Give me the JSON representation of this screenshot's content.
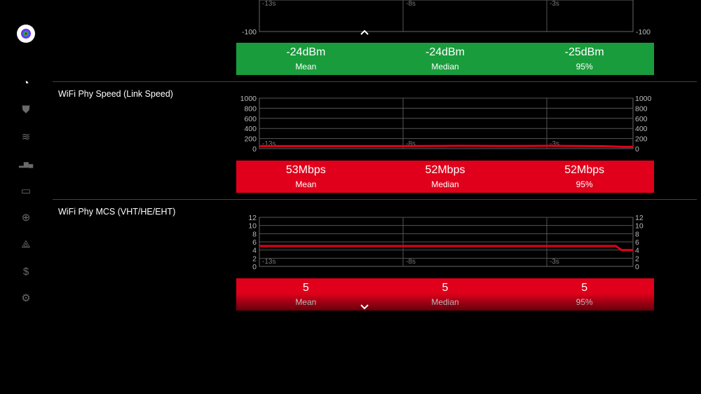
{
  "sidebar": {
    "items": [
      {
        "icon": "speedometer-icon",
        "glyph": "◔",
        "active": true
      },
      {
        "icon": "shield-icon",
        "glyph": "⛊"
      },
      {
        "icon": "wifi-icon",
        "glyph": "≋"
      },
      {
        "icon": "bar-chart-icon",
        "glyph": "▂▆▄"
      },
      {
        "icon": "devices-icon",
        "glyph": "▭"
      },
      {
        "icon": "globe-icon",
        "glyph": "⊕"
      },
      {
        "icon": "webhook-icon",
        "glyph": "⟁"
      },
      {
        "icon": "dollar-icon",
        "glyph": "$"
      },
      {
        "icon": "gear-icon",
        "glyph": "⚙"
      }
    ]
  },
  "panels": [
    {
      "title": "",
      "color": "#199c3c",
      "stats": [
        {
          "value": "-24dBm",
          "label": "Mean"
        },
        {
          "value": "-24dBm",
          "label": "Median"
        },
        {
          "value": "-25dBm",
          "label": "95%"
        }
      ]
    },
    {
      "title": "WiFi Phy Speed (Link Speed)",
      "color": "#e0001b",
      "stats": [
        {
          "value": "53Mbps",
          "label": "Mean"
        },
        {
          "value": "52Mbps",
          "label": "Median"
        },
        {
          "value": "52Mbps",
          "label": "95%"
        }
      ]
    },
    {
      "title": "WiFi Phy MCS (VHT/HE/EHT)",
      "color": "#e0001b",
      "stats": [
        {
          "value": "5",
          "label": "Mean"
        },
        {
          "value": "5",
          "label": "Median"
        },
        {
          "value": "5",
          "label": "95%"
        }
      ]
    }
  ],
  "chart_data": [
    {
      "type": "line",
      "partial": true,
      "yticks": [
        -100
      ],
      "xticks": [
        "-13s",
        "-8s",
        "-3s"
      ]
    },
    {
      "type": "line",
      "ylim": [
        0,
        1000
      ],
      "yticks": [
        0,
        200,
        400,
        600,
        800,
        1000
      ],
      "xticks": [
        "-13s",
        "-8s",
        "-3s"
      ],
      "grid": true,
      "color": "#e0001b",
      "x": [
        -13,
        -8,
        -6,
        -4.5,
        -3,
        -2,
        -1,
        -0.3,
        0
      ],
      "y": [
        50,
        50,
        55,
        52,
        55,
        52,
        48,
        35,
        35
      ]
    },
    {
      "type": "line",
      "ylim": [
        0,
        12
      ],
      "yticks": [
        0,
        2,
        4,
        6,
        8,
        10,
        12
      ],
      "xticks": [
        "-13s",
        "-8s",
        "-3s"
      ],
      "grid": true,
      "color": "#e0001b",
      "x": [
        -13,
        -0.6,
        -0.4,
        0
      ],
      "y": [
        5,
        5,
        4,
        4
      ]
    }
  ]
}
